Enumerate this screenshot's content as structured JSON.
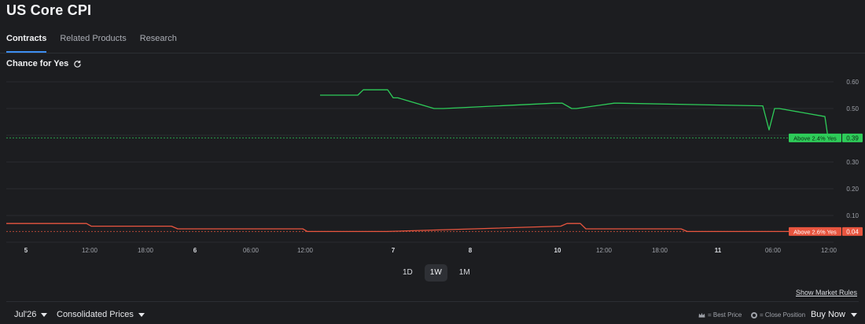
{
  "header": {
    "title": "US Core CPI"
  },
  "tabs": [
    {
      "label": "Contracts",
      "active": true
    },
    {
      "label": "Related Products",
      "active": false
    },
    {
      "label": "Research",
      "active": false
    }
  ],
  "chart_section": {
    "label": "Chance for Yes",
    "refresh_icon": "refresh-icon"
  },
  "chart_data": {
    "type": "line",
    "y_ticks": [
      "0.60",
      "0.50",
      "0.30",
      "0.20",
      "0.10"
    ],
    "x_ticks": [
      "5",
      "12:00",
      "18:00",
      "6",
      "06:00",
      "12:00",
      "7",
      "8",
      "10",
      "12:00",
      "18:00",
      "11",
      "06:00",
      "12:00"
    ],
    "grid": true,
    "series": [
      {
        "name": "Above 2.4% Yes",
        "color": "#2ecc59",
        "last_value": "0.39",
        "values": [
          0.55,
          0.55,
          0.57,
          0.57,
          0.54,
          0.54,
          0.5,
          0.5,
          0.52,
          0.52,
          0.5,
          0.5,
          0.52,
          0.52,
          0.51,
          0.42,
          0.5,
          0.5,
          0.47,
          0.39
        ]
      },
      {
        "name": "Above 2.6% Yes",
        "color": "#e8553f",
        "last_value": "0.04",
        "values": [
          0.07,
          0.07,
          0.06,
          0.06,
          0.05,
          0.05,
          0.04,
          0.04,
          0.06,
          0.07,
          0.07,
          0.05,
          0.05,
          0.04,
          0.04,
          0.04
        ]
      }
    ]
  },
  "range": {
    "options": [
      "1D",
      "1W",
      "1M"
    ],
    "selected": "1W"
  },
  "footer": {
    "market_rules": "Show Market Rules",
    "contract_month": "Jul'26",
    "prices": "Consolidated Prices",
    "best_price": "= Best Price",
    "close_position": "= Close Position",
    "buy_now": "Buy Now"
  }
}
